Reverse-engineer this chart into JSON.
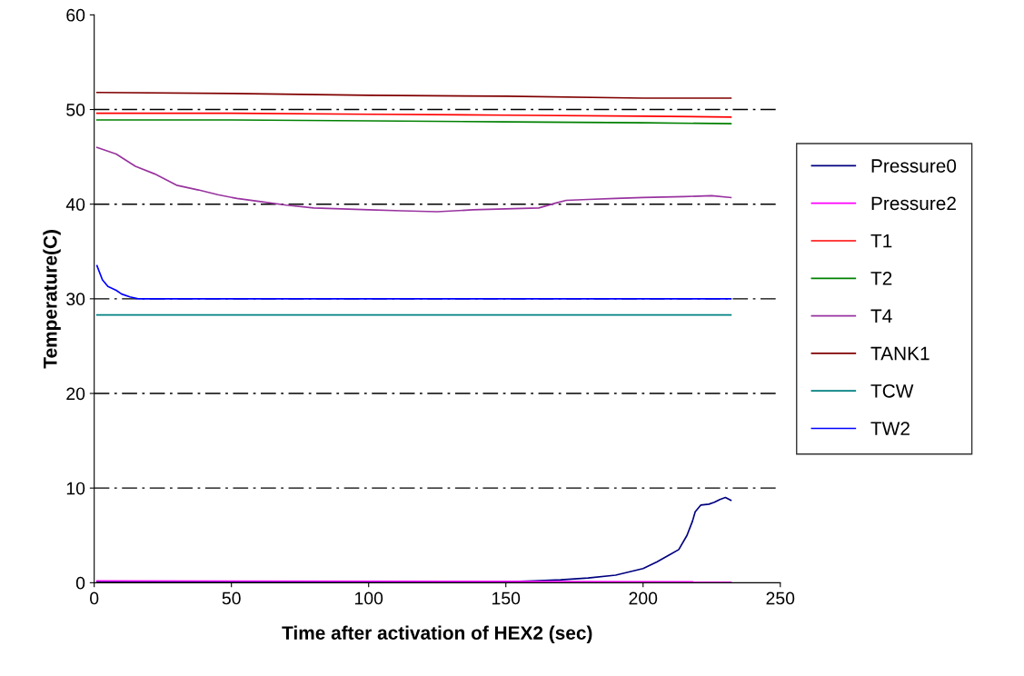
{
  "chart_data": {
    "type": "line",
    "xlabel": "Time after activation of HEX2 (sec)",
    "ylabel": "Temperature(C)",
    "xlim": [
      0,
      250
    ],
    "xticks": [
      0,
      50,
      100,
      150,
      200,
      250
    ],
    "ylim": [
      0,
      60
    ],
    "yticks": [
      0,
      10,
      20,
      30,
      40,
      50,
      60
    ],
    "grid": "y",
    "legend": "right",
    "marker": "none",
    "line_style": "solid",
    "series": [
      {
        "name": "Pressure0",
        "color": "#000080",
        "x": [
          1,
          50,
          100,
          150,
          160,
          170,
          180,
          190,
          200,
          205,
          210,
          213,
          216,
          218,
          219,
          221,
          224,
          226,
          228,
          230,
          232
        ],
        "values": [
          0.1,
          0.1,
          0.1,
          0.1,
          0.2,
          0.3,
          0.5,
          0.8,
          1.5,
          2.2,
          3.0,
          3.5,
          5.0,
          6.5,
          7.5,
          8.2,
          8.3,
          8.5,
          8.8,
          9.0,
          8.7
        ]
      },
      {
        "name": "Pressure2",
        "color": "#ff00ff",
        "x": [
          1,
          232
        ],
        "values": [
          0.2,
          0.1
        ]
      },
      {
        "name": "T1",
        "color": "#ff0000",
        "x": [
          1,
          50,
          100,
          150,
          200,
          232
        ],
        "values": [
          49.6,
          49.6,
          49.5,
          49.4,
          49.3,
          49.2
        ]
      },
      {
        "name": "T2",
        "color": "#008000",
        "x": [
          1,
          50,
          100,
          150,
          200,
          232
        ],
        "values": [
          48.9,
          48.9,
          48.8,
          48.7,
          48.6,
          48.5
        ]
      },
      {
        "name": "T4",
        "color": "#9933a0",
        "x": [
          1,
          8,
          15,
          22,
          30,
          38,
          45,
          52,
          60,
          70,
          80,
          90,
          100,
          112,
          125,
          138,
          150,
          162,
          168,
          172,
          180,
          190,
          200,
          215,
          225,
          232
        ],
        "values": [
          46.0,
          45.3,
          44.0,
          43.2,
          42.0,
          41.5,
          41.0,
          40.6,
          40.3,
          39.9,
          39.6,
          39.5,
          39.4,
          39.3,
          39.2,
          39.4,
          39.5,
          39.6,
          40.1,
          40.4,
          40.5,
          40.6,
          40.7,
          40.8,
          40.9,
          40.7
        ]
      },
      {
        "name": "TANK1",
        "color": "#800000",
        "x": [
          1,
          50,
          100,
          150,
          200,
          232
        ],
        "values": [
          51.8,
          51.7,
          51.5,
          51.4,
          51.2,
          51.2
        ]
      },
      {
        "name": "TCW",
        "color": "#008080",
        "x": [
          1,
          232
        ],
        "values": [
          28.3,
          28.3
        ]
      },
      {
        "name": "TW2",
        "color": "#0000ff",
        "x": [
          1,
          3,
          5,
          8,
          10,
          13,
          16,
          50,
          100,
          150,
          200,
          232
        ],
        "values": [
          33.5,
          32.0,
          31.3,
          30.9,
          30.5,
          30.2,
          30.0,
          30.0,
          30.0,
          30.0,
          30.0,
          30.0
        ]
      }
    ]
  }
}
